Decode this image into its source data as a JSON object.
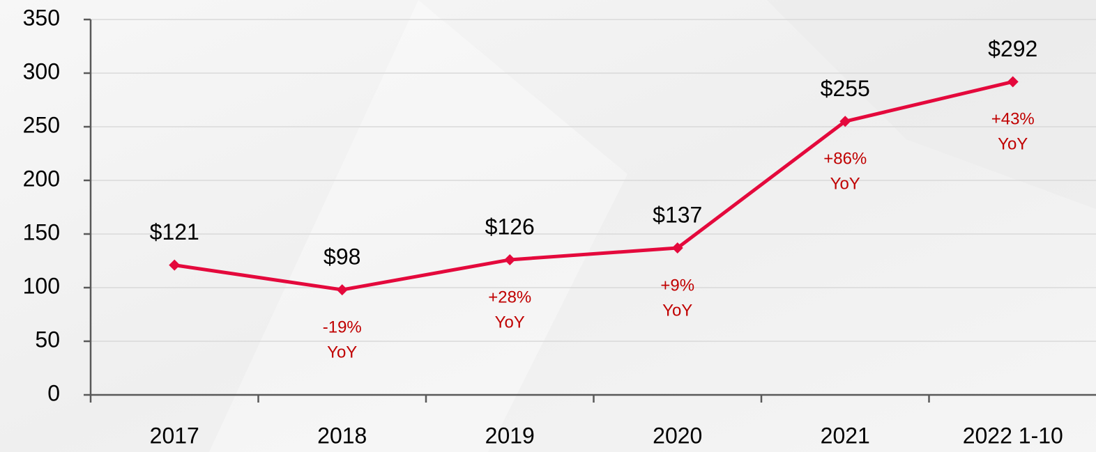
{
  "chart_data": {
    "type": "line",
    "categories": [
      "2017",
      "2018",
      "2019",
      "2020",
      "2021",
      "2022 1-10"
    ],
    "values": [
      121,
      98,
      126,
      137,
      255,
      292
    ],
    "value_labels": [
      "$121",
      "$98",
      "$126",
      "$137",
      "$255",
      "$292"
    ],
    "annotations": [
      null,
      [
        "-19%",
        "YoY"
      ],
      [
        "+28%",
        "YoY"
      ],
      [
        "+9%",
        "YoY"
      ],
      [
        "+86%",
        "YoY"
      ],
      [
        "+43%",
        "YoY"
      ]
    ],
    "color": "#e4093c",
    "annotation_color": "#c00000",
    "ylim": [
      0,
      350
    ],
    "yticks": [
      0,
      50,
      100,
      150,
      200,
      250,
      300,
      350
    ],
    "grid": true
  }
}
